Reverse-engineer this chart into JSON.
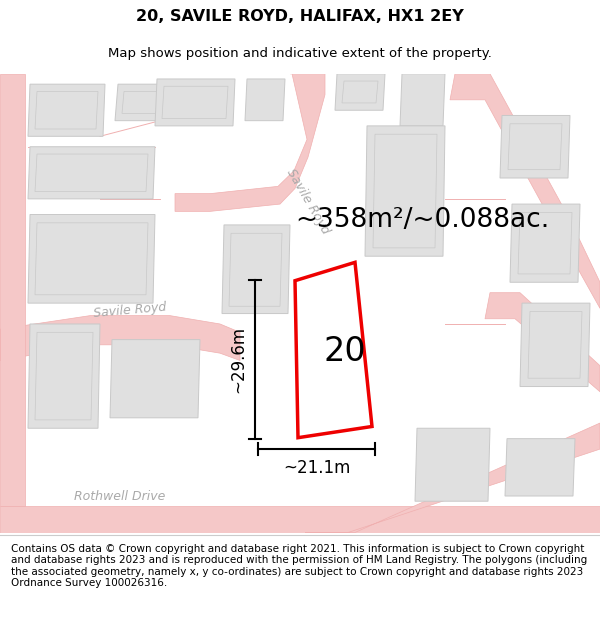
{
  "title_line1": "20, SAVILE ROYD, HALIFAX, HX1 2EY",
  "title_line2": "Map shows position and indicative extent of the property.",
  "area_text": "~358m²/~0.088ac.",
  "label_number": "20",
  "dim_height": "~29.6m",
  "dim_width": "~21.1m",
  "footer_text": "Contains OS data © Crown copyright and database right 2021. This information is subject to Crown copyright and database rights 2023 and is reproduced with the permission of HM Land Registry. The polygons (including the associated geometry, namely x, y co-ordinates) are subject to Crown copyright and database rights 2023 Ordnance Survey 100026316.",
  "map_bg": "#f7f7f7",
  "road_color": "#f5c8c8",
  "road_edge": "#f0b0b0",
  "building_fill": "#e0e0e0",
  "building_edge": "#c8c8c8",
  "red_color": "#ee0000",
  "title_fontsize": 11.5,
  "subtitle_fontsize": 9.5,
  "area_fontsize": 19,
  "label_fontsize": 24,
  "dim_fontsize": 12,
  "footer_fontsize": 7.5,
  "road_label_color": "#aaaaaa",
  "road_label_size": 9
}
